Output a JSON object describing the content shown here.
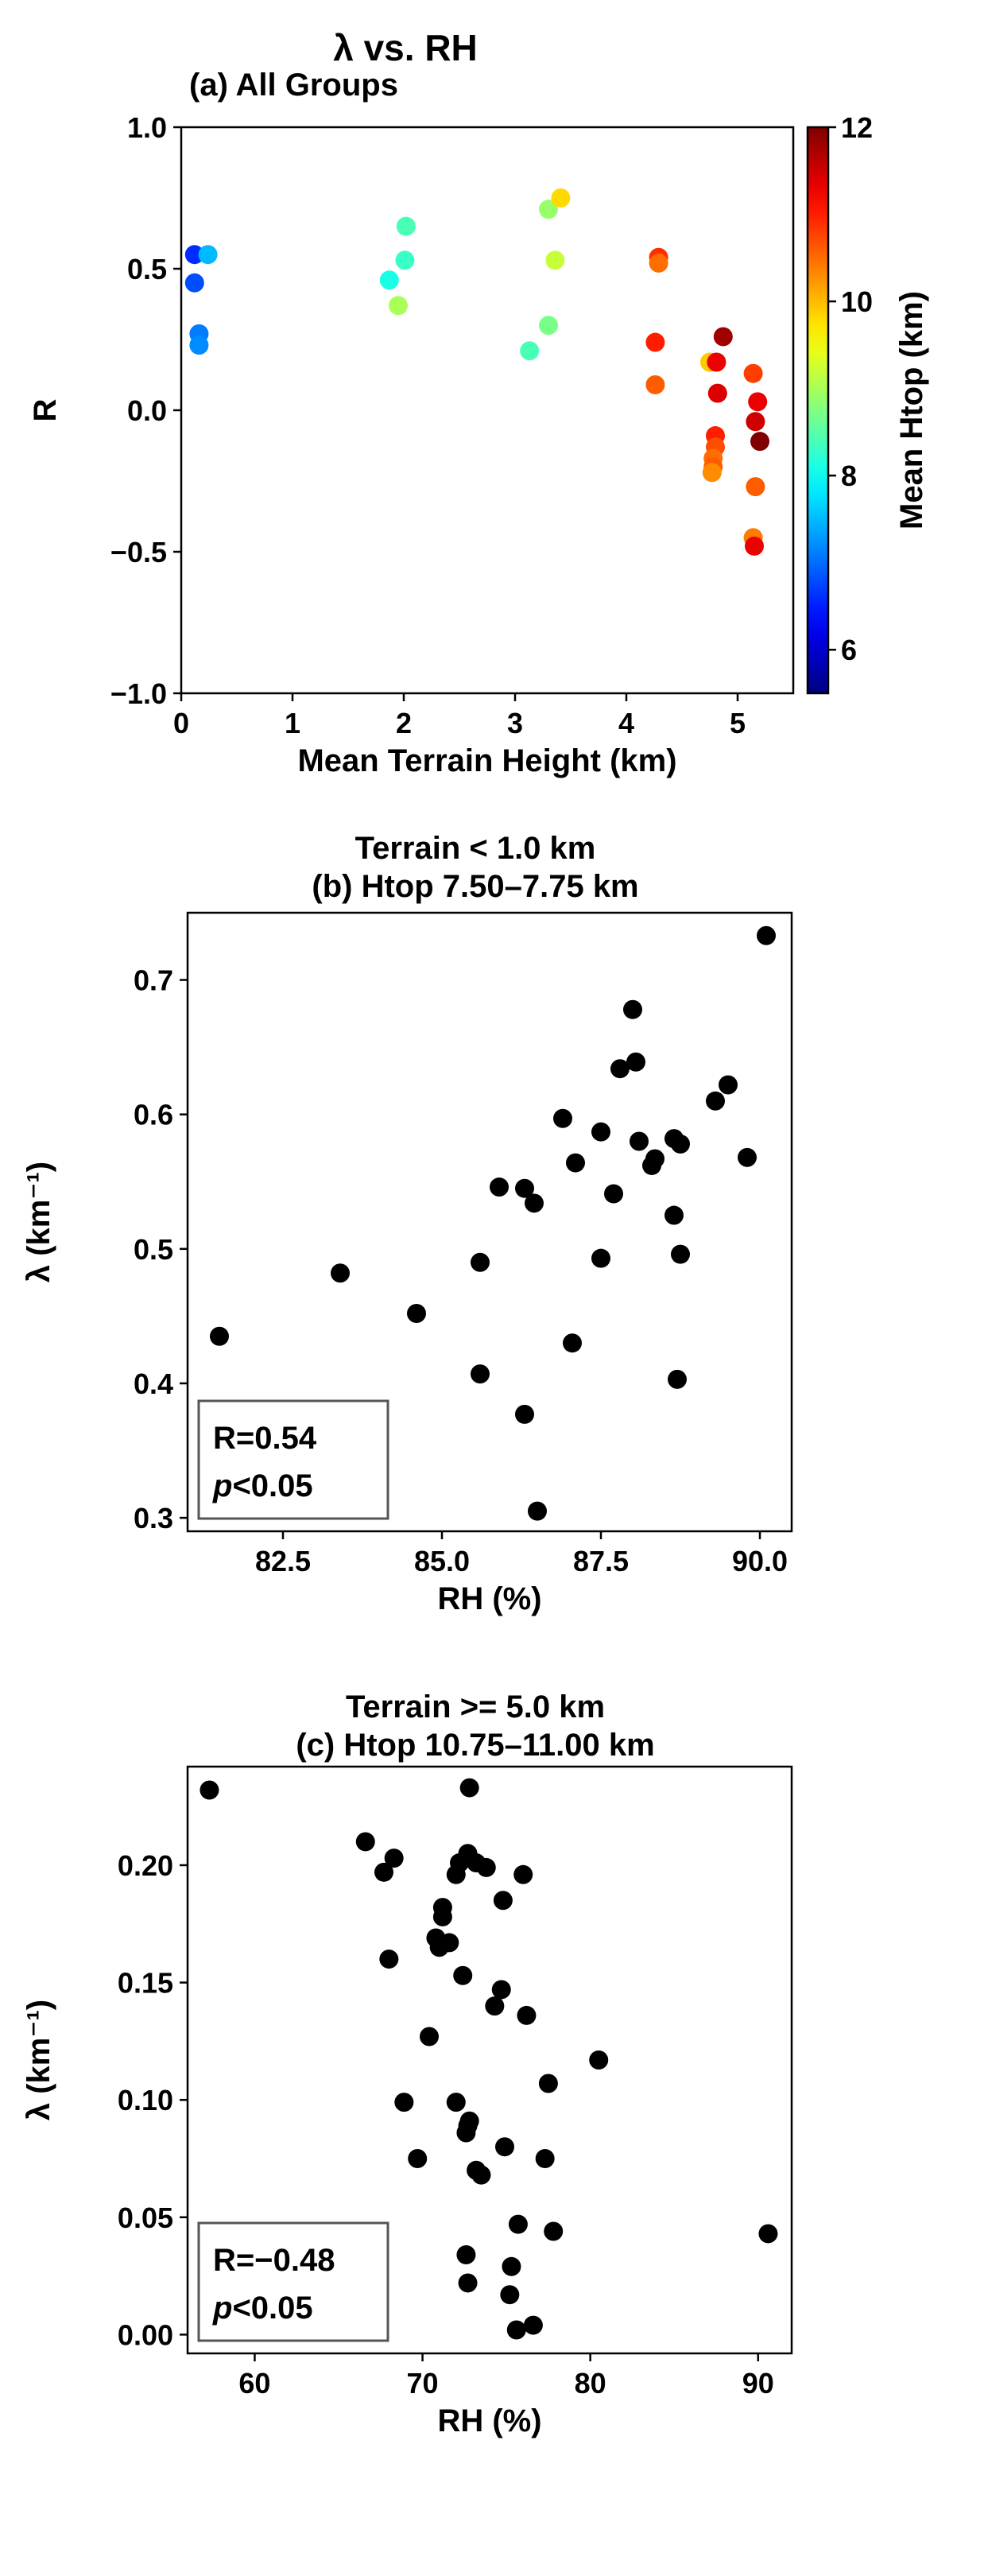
{
  "figure": {
    "title": "λ vs. RH"
  },
  "chart_data": [
    {
      "id": "a",
      "type": "scatter",
      "title": "(a) All Groups",
      "xlabel": "Mean Terrain Height (km)",
      "ylabel": "R",
      "xlim": [
        0,
        5.5
      ],
      "ylim": [
        -1.0,
        1.0
      ],
      "xticks": [
        0,
        1,
        2,
        3,
        4,
        5
      ],
      "xtick_labels": [
        "0",
        "1",
        "2",
        "3",
        "4",
        "5"
      ],
      "yticks": [
        -1.0,
        -0.5,
        0.0,
        0.5,
        1.0
      ],
      "ytick_labels": [
        "−1.0",
        "−0.5",
        "0.0",
        "0.5",
        "1.0"
      ],
      "colorbar": {
        "label": "Mean Htop (km)",
        "range": [
          5.5,
          12
        ],
        "ticks": [
          6,
          8,
          10,
          12
        ],
        "tick_labels": [
          "6",
          "8",
          "10",
          "12"
        ],
        "colormap": "jet"
      },
      "points": [
        {
          "x": 0.12,
          "y": 0.55,
          "c": 6.6
        },
        {
          "x": 0.12,
          "y": 0.45,
          "c": 6.8
        },
        {
          "x": 0.16,
          "y": 0.27,
          "c": 7.1
        },
        {
          "x": 0.16,
          "y": 0.23,
          "c": 7.2
        },
        {
          "x": 0.24,
          "y": 0.55,
          "c": 7.5
        },
        {
          "x": 1.87,
          "y": 0.46,
          "c": 8.1
        },
        {
          "x": 2.02,
          "y": 0.65,
          "c": 8.4
        },
        {
          "x": 2.01,
          "y": 0.53,
          "c": 8.3
        },
        {
          "x": 1.95,
          "y": 0.37,
          "c": 9.0
        },
        {
          "x": 3.13,
          "y": 0.21,
          "c": 8.4
        },
        {
          "x": 3.3,
          "y": 0.71,
          "c": 8.9
        },
        {
          "x": 3.3,
          "y": 0.3,
          "c": 8.7
        },
        {
          "x": 3.36,
          "y": 0.53,
          "c": 9.2
        },
        {
          "x": 3.41,
          "y": 0.75,
          "c": 9.8
        },
        {
          "x": 4.29,
          "y": 0.54,
          "c": 10.9
        },
        {
          "x": 4.29,
          "y": 0.52,
          "c": 10.5
        },
        {
          "x": 4.26,
          "y": 0.24,
          "c": 11.0
        },
        {
          "x": 4.26,
          "y": 0.09,
          "c": 10.6
        },
        {
          "x": 4.75,
          "y": 0.17,
          "c": 9.9
        },
        {
          "x": 4.81,
          "y": 0.17,
          "c": 11.3
        },
        {
          "x": 4.87,
          "y": 0.26,
          "c": 11.8
        },
        {
          "x": 4.82,
          "y": 0.06,
          "c": 11.4
        },
        {
          "x": 4.8,
          "y": -0.09,
          "c": 11.0
        },
        {
          "x": 4.8,
          "y": -0.13,
          "c": 10.7
        },
        {
          "x": 4.78,
          "y": -0.17,
          "c": 10.5
        },
        {
          "x": 4.78,
          "y": -0.2,
          "c": 10.6
        },
        {
          "x": 4.77,
          "y": -0.22,
          "c": 10.3
        },
        {
          "x": 5.14,
          "y": 0.13,
          "c": 10.8
        },
        {
          "x": 5.18,
          "y": 0.03,
          "c": 11.3
        },
        {
          "x": 5.16,
          "y": -0.04,
          "c": 11.5
        },
        {
          "x": 5.2,
          "y": -0.11,
          "c": 12.0
        },
        {
          "x": 5.16,
          "y": -0.27,
          "c": 10.6
        },
        {
          "x": 5.14,
          "y": -0.45,
          "c": 10.4
        },
        {
          "x": 5.15,
          "y": -0.48,
          "c": 11.3
        }
      ]
    },
    {
      "id": "b",
      "type": "scatter",
      "title": "Terrain < 1.0 km\n(b) Htop 7.50–7.75 km",
      "xlabel": "RH (%)",
      "ylabel": "λ (km⁻¹)",
      "xlim": [
        81.0,
        90.5
      ],
      "ylim": [
        0.29,
        0.75
      ],
      "xticks": [
        82.5,
        85.0,
        87.5,
        90.0
      ],
      "xtick_labels": [
        "82.5",
        "85.0",
        "87.5",
        "90.0"
      ],
      "yticks": [
        0.3,
        0.4,
        0.5,
        0.6,
        0.7
      ],
      "ytick_labels": [
        "0.3",
        "0.4",
        "0.5",
        "0.6",
        "0.7"
      ],
      "stats": {
        "r": "R=0.54",
        "p": "p<0.05"
      },
      "points": [
        {
          "x": 81.5,
          "y": 0.435
        },
        {
          "x": 83.4,
          "y": 0.482
        },
        {
          "x": 84.6,
          "y": 0.452
        },
        {
          "x": 85.6,
          "y": 0.407
        },
        {
          "x": 85.6,
          "y": 0.49
        },
        {
          "x": 85.9,
          "y": 0.546
        },
        {
          "x": 86.3,
          "y": 0.377
        },
        {
          "x": 86.3,
          "y": 0.545
        },
        {
          "x": 86.5,
          "y": 0.305
        },
        {
          "x": 86.45,
          "y": 0.534
        },
        {
          "x": 86.9,
          "y": 0.597
        },
        {
          "x": 87.1,
          "y": 0.564
        },
        {
          "x": 87.05,
          "y": 0.43
        },
        {
          "x": 87.5,
          "y": 0.493
        },
        {
          "x": 87.5,
          "y": 0.587
        },
        {
          "x": 87.7,
          "y": 0.541
        },
        {
          "x": 87.8,
          "y": 0.634
        },
        {
          "x": 88.0,
          "y": 0.678
        },
        {
          "x": 88.05,
          "y": 0.639
        },
        {
          "x": 88.1,
          "y": 0.58
        },
        {
          "x": 88.3,
          "y": 0.562
        },
        {
          "x": 88.35,
          "y": 0.567
        },
        {
          "x": 88.65,
          "y": 0.582
        },
        {
          "x": 88.65,
          "y": 0.525
        },
        {
          "x": 88.7,
          "y": 0.403
        },
        {
          "x": 88.75,
          "y": 0.578
        },
        {
          "x": 88.75,
          "y": 0.496
        },
        {
          "x": 89.3,
          "y": 0.61
        },
        {
          "x": 89.5,
          "y": 0.622
        },
        {
          "x": 89.8,
          "y": 0.568
        },
        {
          "x": 90.1,
          "y": 0.733
        }
      ]
    },
    {
      "id": "c",
      "type": "scatter",
      "title": "Terrain >= 5.0 km\n(c) Htop 10.75–11.00 km",
      "xlabel": "RH (%)",
      "ylabel": "λ (km⁻¹)",
      "xlim": [
        56,
        92
      ],
      "ylim": [
        -0.008,
        0.242
      ],
      "xticks": [
        60,
        70,
        80,
        90
      ],
      "xtick_labels": [
        "60",
        "70",
        "80",
        "90"
      ],
      "yticks": [
        0.0,
        0.05,
        0.1,
        0.15,
        0.2
      ],
      "ytick_labels": [
        "0.00",
        "0.05",
        "0.10",
        "0.15",
        "0.20"
      ],
      "stats": {
        "r": "R=−0.48",
        "p": "p<0.05"
      },
      "points": [
        {
          "x": 57.3,
          "y": 0.232
        },
        {
          "x": 66.6,
          "y": 0.21
        },
        {
          "x": 67.7,
          "y": 0.197
        },
        {
          "x": 68.3,
          "y": 0.203
        },
        {
          "x": 68.0,
          "y": 0.16
        },
        {
          "x": 68.9,
          "y": 0.099
        },
        {
          "x": 69.7,
          "y": 0.075
        },
        {
          "x": 70.4,
          "y": 0.127
        },
        {
          "x": 70.8,
          "y": 0.169
        },
        {
          "x": 71.0,
          "y": 0.165
        },
        {
          "x": 71.2,
          "y": 0.178
        },
        {
          "x": 71.2,
          "y": 0.182
        },
        {
          "x": 71.6,
          "y": 0.167
        },
        {
          "x": 72.0,
          "y": 0.196
        },
        {
          "x": 72.0,
          "y": 0.099
        },
        {
          "x": 72.2,
          "y": 0.201
        },
        {
          "x": 72.4,
          "y": 0.153
        },
        {
          "x": 72.6,
          "y": 0.086
        },
        {
          "x": 72.7,
          "y": 0.089
        },
        {
          "x": 72.8,
          "y": 0.091
        },
        {
          "x": 72.6,
          "y": 0.034
        },
        {
          "x": 72.7,
          "y": 0.022
        },
        {
          "x": 72.7,
          "y": 0.205
        },
        {
          "x": 72.8,
          "y": 0.233
        },
        {
          "x": 73.2,
          "y": 0.201
        },
        {
          "x": 73.2,
          "y": 0.07
        },
        {
          "x": 73.5,
          "y": 0.068
        },
        {
          "x": 73.8,
          "y": 0.199
        },
        {
          "x": 74.3,
          "y": 0.14
        },
        {
          "x": 74.7,
          "y": 0.147
        },
        {
          "x": 74.8,
          "y": 0.185
        },
        {
          "x": 74.9,
          "y": 0.08
        },
        {
          "x": 75.2,
          "y": 0.017
        },
        {
          "x": 75.3,
          "y": 0.029
        },
        {
          "x": 75.6,
          "y": 0.002
        },
        {
          "x": 75.7,
          "y": 0.047
        },
        {
          "x": 76.0,
          "y": 0.196
        },
        {
          "x": 76.2,
          "y": 0.136
        },
        {
          "x": 76.6,
          "y": 0.004
        },
        {
          "x": 77.3,
          "y": 0.075
        },
        {
          "x": 77.5,
          "y": 0.107
        },
        {
          "x": 77.8,
          "y": 0.044
        },
        {
          "x": 80.5,
          "y": 0.117
        },
        {
          "x": 90.6,
          "y": 0.043
        }
      ]
    }
  ]
}
